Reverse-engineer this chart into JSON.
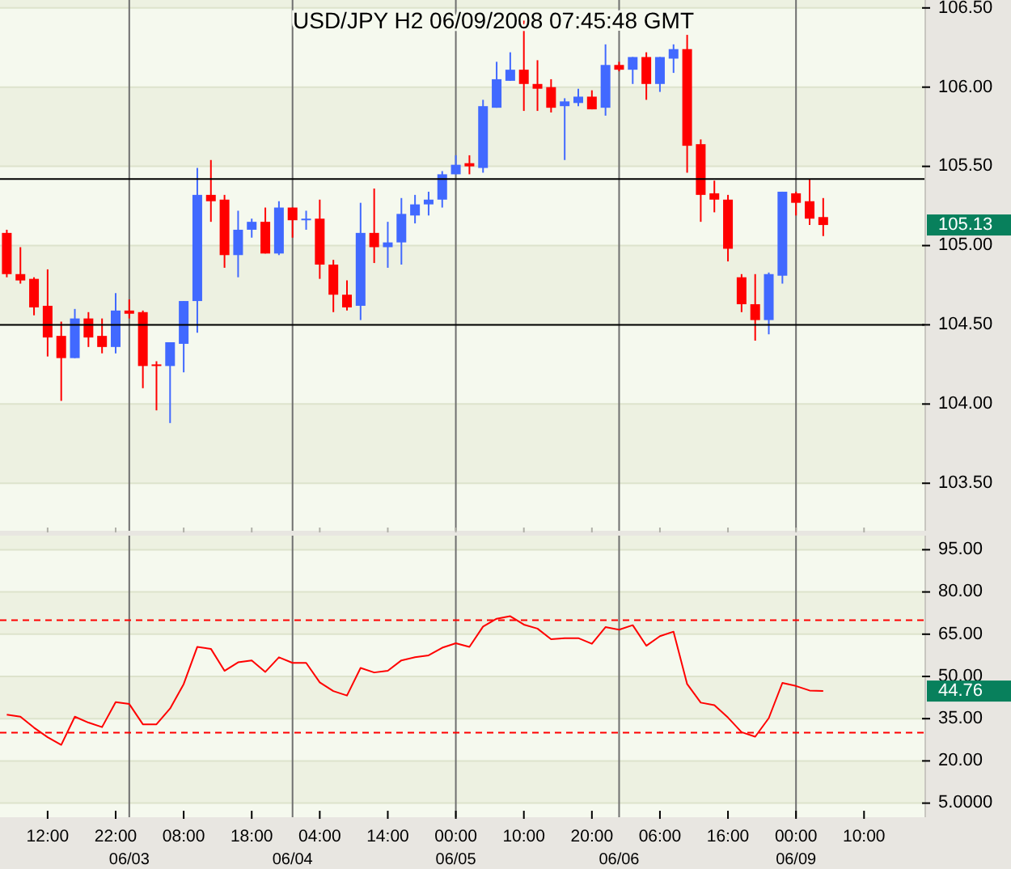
{
  "chart_data": [
    {
      "type": "candlestick",
      "title": "USD/JPY  H2  06/09/2008  07:45:48 GMT",
      "categories": [
        null,
        null,
        null,
        "12:00",
        null,
        null,
        null,
        null,
        "22:00",
        "\n06/03",
        null,
        null,
        null,
        "08:00",
        null,
        null,
        null,
        null,
        "18:00",
        null,
        null,
        "\n06/04",
        null,
        "04:00",
        null,
        null,
        null,
        null,
        "14:00",
        null,
        null,
        null,
        null,
        "00:00\n06/05",
        null,
        null,
        null,
        null,
        "10:00",
        null,
        null,
        null,
        null,
        "20:00",
        null,
        "\n06/06",
        null,
        null,
        "06:00",
        null,
        null,
        null,
        null,
        "16:00",
        null,
        null,
        null,
        null,
        "00:00\n06/09",
        null,
        null,
        null,
        null,
        "10:00",
        null,
        null,
        null,
        null
      ],
      "ohlc": [
        [
          105.08,
          105.1,
          104.8,
          104.82
        ],
        [
          104.82,
          104.99,
          104.76,
          104.78
        ],
        [
          104.79,
          104.8,
          104.56,
          104.61
        ],
        [
          104.62,
          104.85,
          104.3,
          104.42
        ],
        [
          104.43,
          104.52,
          104.02,
          104.29
        ],
        [
          104.29,
          104.6,
          104.29,
          104.54
        ],
        [
          104.54,
          104.58,
          104.36,
          104.42
        ],
        [
          104.43,
          104.54,
          104.32,
          104.36
        ],
        [
          104.36,
          104.7,
          104.32,
          104.59
        ],
        [
          104.59,
          104.66,
          104.54,
          104.57
        ],
        [
          104.58,
          104.59,
          104.1,
          104.24
        ],
        [
          104.25,
          104.27,
          103.96,
          104.24
        ],
        [
          104.24,
          104.39,
          103.88,
          104.39
        ],
        [
          104.38,
          104.65,
          104.2,
          104.65
        ],
        [
          104.65,
          105.49,
          104.45,
          105.32
        ],
        [
          105.32,
          105.54,
          105.15,
          105.28
        ],
        [
          105.29,
          105.32,
          104.86,
          104.94
        ],
        [
          104.94,
          105.22,
          104.8,
          105.1
        ],
        [
          105.1,
          105.17,
          105.05,
          105.15
        ],
        [
          105.15,
          105.24,
          104.95,
          104.95
        ],
        [
          104.95,
          105.28,
          104.94,
          105.24
        ],
        [
          105.24,
          105.24,
          105.05,
          105.16
        ],
        [
          105.16,
          105.22,
          105.1,
          105.17
        ],
        [
          105.17,
          105.29,
          104.79,
          104.88
        ],
        [
          104.88,
          104.91,
          104.58,
          104.69
        ],
        [
          104.69,
          104.78,
          104.59,
          104.61
        ],
        [
          104.62,
          105.27,
          104.53,
          105.08
        ],
        [
          105.08,
          105.36,
          104.89,
          104.99
        ],
        [
          104.99,
          105.15,
          104.86,
          105.02
        ],
        [
          105.02,
          105.3,
          104.88,
          105.2
        ],
        [
          105.19,
          105.32,
          105.14,
          105.26
        ],
        [
          105.26,
          105.34,
          105.19,
          105.29
        ],
        [
          105.29,
          105.47,
          105.24,
          105.45
        ],
        [
          105.45,
          105.57,
          105.45,
          105.51
        ],
        [
          105.52,
          105.57,
          105.45,
          105.5
        ],
        [
          105.49,
          105.92,
          105.46,
          105.88
        ],
        [
          105.87,
          106.16,
          105.87,
          106.05
        ],
        [
          106.04,
          106.22,
          106.04,
          106.11
        ],
        [
          106.11,
          106.42,
          105.85,
          106.02
        ],
        [
          106.02,
          106.17,
          105.85,
          105.99
        ],
        [
          106.0,
          106.05,
          105.84,
          105.87
        ],
        [
          105.88,
          105.93,
          105.54,
          105.91
        ],
        [
          105.9,
          105.99,
          105.88,
          105.94
        ],
        [
          105.94,
          105.98,
          105.86,
          105.86
        ],
        [
          105.87,
          106.27,
          105.82,
          106.14
        ],
        [
          106.14,
          106.16,
          106.1,
          106.11
        ],
        [
          106.11,
          106.19,
          106.02,
          106.19
        ],
        [
          106.19,
          106.22,
          105.92,
          106.02
        ],
        [
          106.02,
          106.19,
          105.97,
          106.19
        ],
        [
          106.18,
          106.27,
          106.09,
          106.24
        ],
        [
          106.24,
          106.33,
          105.46,
          105.63
        ],
        [
          105.64,
          105.67,
          105.15,
          105.32
        ],
        [
          105.33,
          105.41,
          105.21,
          105.29
        ],
        [
          105.29,
          105.32,
          104.9,
          104.98
        ],
        [
          104.8,
          104.82,
          104.58,
          104.63
        ],
        [
          104.63,
          104.82,
          104.4,
          104.53
        ],
        [
          104.53,
          104.83,
          104.44,
          104.82
        ],
        [
          104.81,
          105.34,
          104.76,
          105.34
        ],
        [
          105.33,
          105.34,
          105.19,
          105.27
        ],
        [
          105.28,
          105.42,
          105.13,
          105.17
        ],
        [
          105.18,
          105.3,
          105.06,
          105.13
        ],
        null,
        null,
        null,
        null,
        null,
        null,
        null
      ],
      "colors": [
        "#ff0000",
        "#ff0000",
        "#ff0000",
        "#ff0000",
        "#ff0000",
        "#4169ff",
        "#ff0000",
        "#ff0000",
        "#4169ff",
        "#ff0000",
        "#ff0000",
        "#ff0000",
        "#4169ff",
        "#4169ff",
        "#4169ff",
        "#ff0000",
        "#ff0000",
        "#4169ff",
        "#4169ff",
        "#ff0000",
        "#4169ff",
        "#ff0000",
        "#4169ff",
        "#ff0000",
        "#ff0000",
        "#ff0000",
        "#4169ff",
        "#ff0000",
        "#4169ff",
        "#4169ff",
        "#4169ff",
        "#4169ff",
        "#4169ff",
        "#4169ff",
        "#ff0000",
        "#4169ff",
        "#4169ff",
        "#4169ff",
        "#ff0000",
        "#ff0000",
        "#ff0000",
        "#4169ff",
        "#4169ff",
        "#ff0000",
        "#4169ff",
        "#ff0000",
        "#4169ff",
        "#ff0000",
        "#4169ff",
        "#4169ff",
        "#ff0000",
        "#ff0000",
        "#ff0000",
        "#ff0000",
        "#ff0000",
        "#ff0000",
        "#4169ff",
        "#4169ff",
        "#ff0000",
        "#ff0000",
        "#ff0000",
        null,
        null,
        null,
        null,
        null,
        null,
        null
      ],
      "ylim": [
        103.2,
        106.55
      ],
      "yticks": [
        {
          "value": 103.5,
          "label": "103.50"
        },
        {
          "value": 104,
          "label": "104.00"
        },
        {
          "value": 104.5,
          "label": "104.50"
        },
        {
          "value": 105,
          "label": "105.00"
        },
        {
          "value": 105.5,
          "label": "105.50"
        },
        {
          "value": 106,
          "label": "106.00"
        },
        {
          "value": 106.5,
          "label": "106.50"
        }
      ],
      "tick_labels": "y",
      "grid": "y",
      "ref_lines": [
        {
          "axis": "y",
          "value": 105.42,
          "color": "#000000"
        },
        {
          "axis": "y",
          "value": 104.5,
          "color": "#000000"
        },
        {
          "axis": "x",
          "value": "\n06/03",
          "color": "#707070"
        },
        {
          "axis": "x",
          "value": "\n06/04",
          "color": "#707070"
        },
        {
          "axis": "x",
          "value": "00:00\n06/05",
          "color": "#707070"
        },
        {
          "axis": "x",
          "value": "\n06/06",
          "color": "#707070"
        },
        {
          "axis": "x",
          "value": "00:00\n06/09",
          "color": "#707070"
        }
      ],
      "annotations": [
        "105.13"
      ]
    },
    {
      "type": "line",
      "categories": [
        null,
        null,
        null,
        "12:00",
        null,
        null,
        null,
        null,
        "22:00",
        "\n06/03",
        null,
        null,
        null,
        "08:00",
        null,
        null,
        null,
        null,
        "18:00",
        null,
        null,
        "\n06/04",
        null,
        "04:00",
        null,
        null,
        null,
        null,
        "14:00",
        null,
        null,
        null,
        null,
        "00:00\n06/05",
        null,
        null,
        null,
        null,
        "10:00",
        null,
        null,
        null,
        null,
        "20:00",
        null,
        "\n06/06",
        null,
        null,
        "06:00",
        null,
        null,
        null,
        null,
        "16:00",
        null,
        null,
        null,
        null,
        "00:00\n06/09",
        null,
        null,
        null,
        null,
        "10:00",
        null,
        null,
        null,
        null
      ],
      "series": [
        {
          "color": "#ff0000",
          "values": [
            36.4,
            35.7,
            31.8,
            28.4,
            25.7,
            35.7,
            33.6,
            32.0,
            40.9,
            40.2,
            33.0,
            33.0,
            38.6,
            47.3,
            60.5,
            59.8,
            52.0,
            55.0,
            55.7,
            51.6,
            56.8,
            54.8,
            54.8,
            47.9,
            44.8,
            43.2,
            53.0,
            51.4,
            52.0,
            55.7,
            56.8,
            57.5,
            60.2,
            61.8,
            60.5,
            67.7,
            70.5,
            71.4,
            68.4,
            67.0,
            63.2,
            63.6,
            63.6,
            61.6,
            67.5,
            66.6,
            68.2,
            60.9,
            64.3,
            65.9,
            47.3,
            40.7,
            39.8,
            35.4,
            30.2,
            28.6,
            35.2,
            47.7,
            46.6,
            45.0,
            44.8,
            null,
            null,
            null,
            null,
            null,
            null,
            null
          ]
        }
      ],
      "ylim": [
        0,
        100
      ],
      "yticks": [
        {
          "value": 5,
          "label": "5.0000"
        },
        {
          "value": 20,
          "label": "20.00"
        },
        {
          "value": 35,
          "label": "35.00"
        },
        {
          "value": 50,
          "label": "50.00"
        },
        {
          "value": 65,
          "label": "65.00"
        },
        {
          "value": 80,
          "label": "80.00"
        },
        {
          "value": 95,
          "label": "95.00"
        }
      ],
      "grid": "y",
      "ref_lines": [
        {
          "axis": "y",
          "value": 70,
          "color": "#ff0000",
          "line_style": "dashed"
        },
        {
          "axis": "y",
          "value": 30,
          "color": "#ff0000",
          "line_style": "dashed"
        },
        {
          "axis": "x",
          "value": "\n06/03",
          "color": "#707070"
        },
        {
          "axis": "x",
          "value": "\n06/04",
          "color": "#707070"
        },
        {
          "axis": "x",
          "value": "00:00\n06/05",
          "color": "#707070"
        },
        {
          "axis": "x",
          "value": "\n06/06",
          "color": "#707070"
        },
        {
          "axis": "x",
          "value": "00:00\n06/09",
          "color": "#707070"
        }
      ],
      "annotations": [
        "44.76"
      ]
    }
  ]
}
